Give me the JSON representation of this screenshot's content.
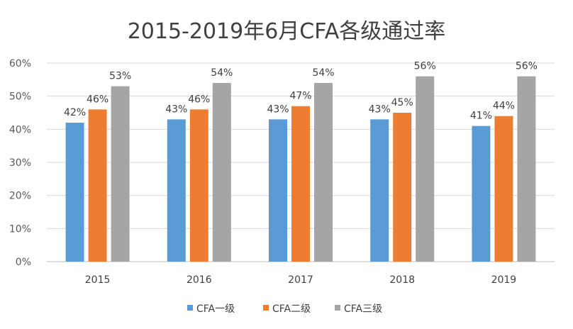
{
  "chart_data": {
    "type": "bar",
    "title": "2015-2019年6月CFA各级通过率",
    "categories": [
      "2015",
      "2016",
      "2017",
      "2018",
      "2019"
    ],
    "series": [
      {
        "name": "CFA一级",
        "color": "#5b9bd5",
        "values": [
          42,
          43,
          43,
          43,
          41
        ],
        "labels": [
          "42%",
          "43%",
          "43%",
          "43%",
          "41%"
        ]
      },
      {
        "name": "CFA二级",
        "color": "#ed7d31",
        "values": [
          46,
          46,
          47,
          45,
          44
        ],
        "labels": [
          "46%",
          "46%",
          "47%",
          "45%",
          "44%"
        ]
      },
      {
        "name": "CFA三级",
        "color": "#a5a5a5",
        "values": [
          53,
          54,
          54,
          56,
          56
        ],
        "labels": [
          "53%",
          "54%",
          "54%",
          "56%",
          "56%"
        ]
      }
    ],
    "ylim": [
      0,
      60
    ],
    "yticks": [
      0,
      10,
      20,
      30,
      40,
      50,
      60
    ],
    "ytick_labels": [
      "0%",
      "10%",
      "20%",
      "30%",
      "40%",
      "50%",
      "60%"
    ],
    "grid": true,
    "legend": "bottom",
    "xlabel": "",
    "ylabel": ""
  }
}
